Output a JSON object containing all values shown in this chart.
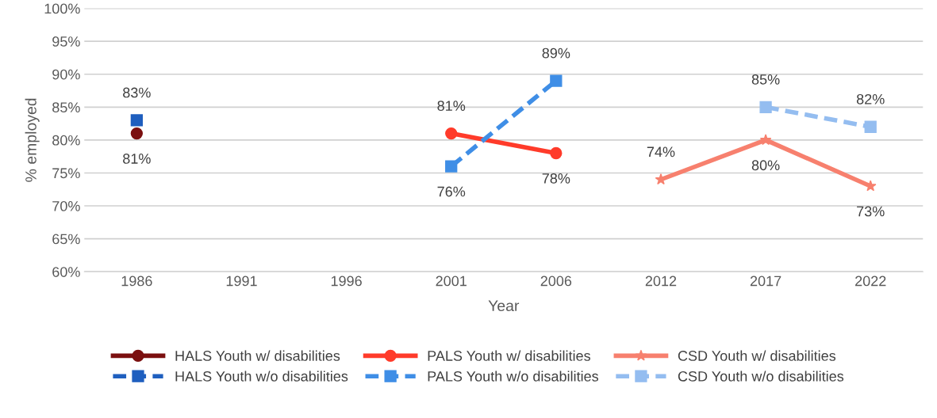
{
  "chart_data": {
    "type": "line",
    "xlabel": "Year",
    "ylabel": "% employed",
    "categories": [
      "1986",
      "1991",
      "1996",
      "2001",
      "2006",
      "2012",
      "2017",
      "2022"
    ],
    "ylim": [
      60,
      100
    ],
    "yticks": [
      {
        "value": 60,
        "label": "60%"
      },
      {
        "value": 65,
        "label": "65%"
      },
      {
        "value": 70,
        "label": "70%"
      },
      {
        "value": 75,
        "label": "75%"
      },
      {
        "value": 80,
        "label": "80%"
      },
      {
        "value": 85,
        "label": "85%"
      },
      {
        "value": 90,
        "label": "90%"
      },
      {
        "value": 95,
        "label": "95%"
      },
      {
        "value": 100,
        "label": "100%"
      }
    ],
    "grid": "y",
    "legend": "bottom",
    "series": [
      {
        "name": "HALS Youth w/ disabilities",
        "color": "#7b1010",
        "marker": "circle",
        "line_style": "solid",
        "values": [
          81,
          null,
          null,
          null,
          null,
          null,
          null,
          null
        ],
        "value_labels": [
          "81%",
          null,
          null,
          null,
          null,
          null,
          null,
          null
        ]
      },
      {
        "name": "HALS Youth w/o disabilities",
        "color": "#1f5fbf",
        "marker": "square",
        "line_style": "dashed",
        "values": [
          83,
          null,
          null,
          null,
          null,
          null,
          null,
          null
        ],
        "value_labels": [
          "83%",
          null,
          null,
          null,
          null,
          null,
          null,
          null
        ]
      },
      {
        "name": "PALS Youth w/ disabilities",
        "color": "#ff3b2a",
        "marker": "circle",
        "line_style": "solid",
        "values": [
          null,
          null,
          null,
          81,
          78,
          null,
          null,
          null
        ],
        "value_labels": [
          null,
          null,
          null,
          "81%",
          "78%",
          null,
          null,
          null
        ]
      },
      {
        "name": "PALS Youth w/o disabilities",
        "color": "#3f8ee6",
        "marker": "square",
        "line_style": "dashed",
        "values": [
          null,
          null,
          null,
          76,
          89,
          null,
          null,
          null
        ],
        "value_labels": [
          null,
          null,
          null,
          "76%",
          "89%",
          null,
          null,
          null
        ]
      },
      {
        "name": "CSD Youth w/ disabilities",
        "color": "#f7806e",
        "marker": "star",
        "line_style": "solid",
        "values": [
          null,
          null,
          null,
          null,
          null,
          74,
          80,
          73
        ],
        "value_labels": [
          null,
          null,
          null,
          null,
          null,
          "74%",
          "80%",
          "73%"
        ]
      },
      {
        "name": "CSD Youth w/o disabilities",
        "color": "#94bdf0",
        "marker": "square",
        "line_style": "dashed",
        "values": [
          null,
          null,
          null,
          null,
          null,
          null,
          85,
          82
        ],
        "value_labels": [
          null,
          null,
          null,
          null,
          null,
          null,
          "85%",
          "82%"
        ]
      }
    ]
  }
}
